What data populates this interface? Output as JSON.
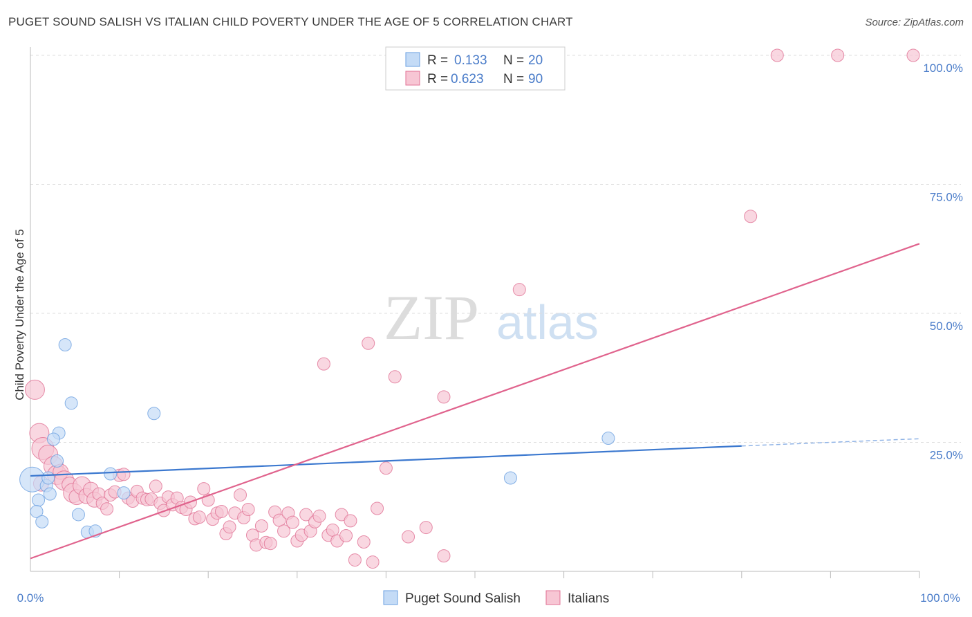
{
  "title": "PUGET SOUND SALISH VS ITALIAN CHILD POVERTY UNDER THE AGE OF 5 CORRELATION CHART",
  "source": "Source: ZipAtlas.com",
  "watermark": {
    "zip": "ZIP",
    "atlas": "atlas"
  },
  "chart_data": {
    "type": "scatter",
    "ylabel": "Child Poverty Under the Age of 5",
    "xlim": [
      0,
      100
    ],
    "ylim": [
      0,
      100
    ],
    "y_ticks": [
      {
        "value": 25,
        "label": "25.0%"
      },
      {
        "value": 50,
        "label": "50.0%"
      },
      {
        "value": 75,
        "label": "75.0%"
      },
      {
        "value": 100,
        "label": "100.0%"
      }
    ],
    "x_tick_labels": {
      "min": "0.0%",
      "max": "100.0%"
    },
    "legend": {
      "r_label": "R =",
      "n_label": "N =",
      "entries": [
        {
          "series": "Puget Sound Salish",
          "r": "0.133",
          "n": "20"
        },
        {
          "series": "Italians",
          "r": "0.623",
          "n": "90"
        }
      ]
    },
    "series": [
      {
        "name": "Puget Sound Salish",
        "color": "#6a9fe0",
        "fill": "#c4dbf6",
        "trend": {
          "x0": 0,
          "y0": 18.5,
          "x1": 80,
          "y1": 24.3,
          "dash_to_x": 100,
          "dash_to_y": 25.7
        },
        "points": [
          [
            0.2,
            17.8,
            18
          ],
          [
            0.9,
            13.8,
            9
          ],
          [
            0.7,
            11.6,
            9
          ],
          [
            1.3,
            9.6,
            9
          ],
          [
            1.8,
            16.6,
            9
          ],
          [
            2.0,
            18.1,
            9
          ],
          [
            2.2,
            15.0,
            9
          ],
          [
            3.0,
            21.4,
            9
          ],
          [
            3.2,
            26.8,
            9
          ],
          [
            2.6,
            25.6,
            9
          ],
          [
            3.9,
            43.9,
            9
          ],
          [
            4.6,
            32.6,
            9
          ],
          [
            5.4,
            11.0,
            9
          ],
          [
            6.4,
            7.6,
            9
          ],
          [
            7.3,
            7.8,
            9
          ],
          [
            9.0,
            18.9,
            9
          ],
          [
            10.5,
            15.2,
            9
          ],
          [
            13.9,
            30.6,
            9
          ],
          [
            54.0,
            18.1,
            9
          ],
          [
            65.0,
            25.8,
            9
          ]
        ]
      },
      {
        "name": "Italians",
        "color": "#e07094",
        "fill": "#f7c6d4",
        "trend": {
          "x0": 0,
          "y0": 2.5,
          "x1": 100,
          "y1": 63.5
        },
        "points": [
          [
            0.5,
            35.2,
            14
          ],
          [
            1.0,
            26.8,
            14
          ],
          [
            1.4,
            23.8,
            16
          ],
          [
            2.0,
            22.6,
            14
          ],
          [
            2.6,
            20.4,
            14
          ],
          [
            3.0,
            18.7,
            14
          ],
          [
            3.4,
            19.3,
            11
          ],
          [
            3.8,
            17.6,
            14
          ],
          [
            4.4,
            16.8,
            11
          ],
          [
            4.8,
            15.2,
            14
          ],
          [
            5.2,
            14.4,
            11
          ],
          [
            5.8,
            16.6,
            13
          ],
          [
            6.3,
            14.6,
            11
          ],
          [
            6.8,
            15.8,
            11
          ],
          [
            7.2,
            13.9,
            11
          ],
          [
            7.7,
            15.0,
            9
          ],
          [
            8.1,
            13.2,
            9
          ],
          [
            8.6,
            12.1,
            9
          ],
          [
            9.0,
            14.8,
            9
          ],
          [
            9.5,
            15.4,
            9
          ],
          [
            10.0,
            18.6,
            9
          ],
          [
            10.5,
            18.8,
            9
          ],
          [
            11.0,
            14.2,
            9
          ],
          [
            11.5,
            13.6,
            9
          ],
          [
            12.0,
            15.5,
            9
          ],
          [
            12.6,
            14.2,
            9
          ],
          [
            13.1,
            13.9,
            9
          ],
          [
            13.6,
            14.0,
            9
          ],
          [
            14.1,
            16.5,
            9
          ],
          [
            14.6,
            13.2,
            9
          ],
          [
            15.0,
            11.8,
            9
          ],
          [
            15.5,
            14.4,
            9
          ],
          [
            16.0,
            12.9,
            9
          ],
          [
            16.5,
            14.2,
            9
          ],
          [
            17.0,
            12.4,
            9
          ],
          [
            17.5,
            12.0,
            9
          ],
          [
            18.0,
            13.4,
            9
          ],
          [
            18.5,
            10.2,
            9
          ],
          [
            19.0,
            10.5,
            9
          ],
          [
            19.5,
            16.0,
            9
          ],
          [
            20.0,
            13.8,
            9
          ],
          [
            20.5,
            10.1,
            9
          ],
          [
            21.0,
            11.3,
            9
          ],
          [
            21.5,
            11.6,
            9
          ],
          [
            22.0,
            7.3,
            9
          ],
          [
            22.4,
            8.6,
            9
          ],
          [
            23.0,
            11.3,
            9
          ],
          [
            23.6,
            14.8,
            9
          ],
          [
            24.0,
            10.4,
            9
          ],
          [
            24.5,
            12.0,
            9
          ],
          [
            25.0,
            7.0,
            9
          ],
          [
            25.4,
            5.1,
            9
          ],
          [
            26.0,
            8.8,
            9
          ],
          [
            26.5,
            5.6,
            9
          ],
          [
            27.0,
            5.4,
            9
          ],
          [
            27.5,
            11.5,
            9
          ],
          [
            28.0,
            9.9,
            9
          ],
          [
            28.5,
            7.8,
            9
          ],
          [
            29.0,
            11.3,
            9
          ],
          [
            29.5,
            9.5,
            9
          ],
          [
            30.0,
            5.9,
            9
          ],
          [
            30.5,
            7.0,
            9
          ],
          [
            31.0,
            11.0,
            9
          ],
          [
            31.5,
            7.8,
            9
          ],
          [
            32.0,
            9.6,
            9
          ],
          [
            32.5,
            10.7,
            9
          ],
          [
            33.0,
            40.2,
            9
          ],
          [
            33.5,
            7.0,
            9
          ],
          [
            34.0,
            8.0,
            9
          ],
          [
            34.5,
            5.9,
            9
          ],
          [
            35.0,
            11.0,
            9
          ],
          [
            35.5,
            6.9,
            9
          ],
          [
            36.0,
            9.8,
            9
          ],
          [
            36.5,
            2.2,
            9
          ],
          [
            37.5,
            5.7,
            9
          ],
          [
            38.0,
            44.2,
            9
          ],
          [
            38.5,
            1.8,
            9
          ],
          [
            39.0,
            12.2,
            9
          ],
          [
            40.0,
            20.0,
            9
          ],
          [
            41.0,
            37.7,
            9
          ],
          [
            42.5,
            6.7,
            9
          ],
          [
            44.5,
            8.5,
            9
          ],
          [
            46.5,
            33.8,
            9
          ],
          [
            46.5,
            3.0,
            9
          ],
          [
            55.0,
            54.6,
            9
          ],
          [
            81.0,
            68.8,
            9
          ],
          [
            84.0,
            100,
            9
          ],
          [
            90.8,
            100,
            9
          ],
          [
            99.3,
            100,
            9
          ],
          [
            1.2,
            17.0,
            11
          ]
        ]
      }
    ]
  }
}
